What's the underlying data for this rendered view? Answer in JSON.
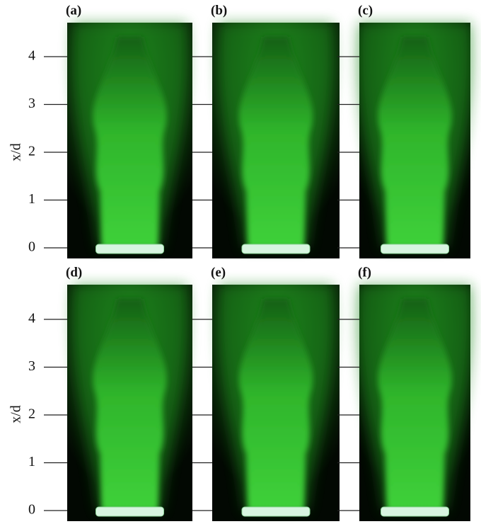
{
  "axis_label": "x/d",
  "yticks": [
    0,
    1,
    2,
    3,
    4
  ],
  "panels": [
    {
      "label": "(a)"
    },
    {
      "label": "(b)"
    },
    {
      "label": "(c)"
    },
    {
      "label": "(d)"
    },
    {
      "label": "(e)"
    },
    {
      "label": "(f)"
    }
  ]
}
